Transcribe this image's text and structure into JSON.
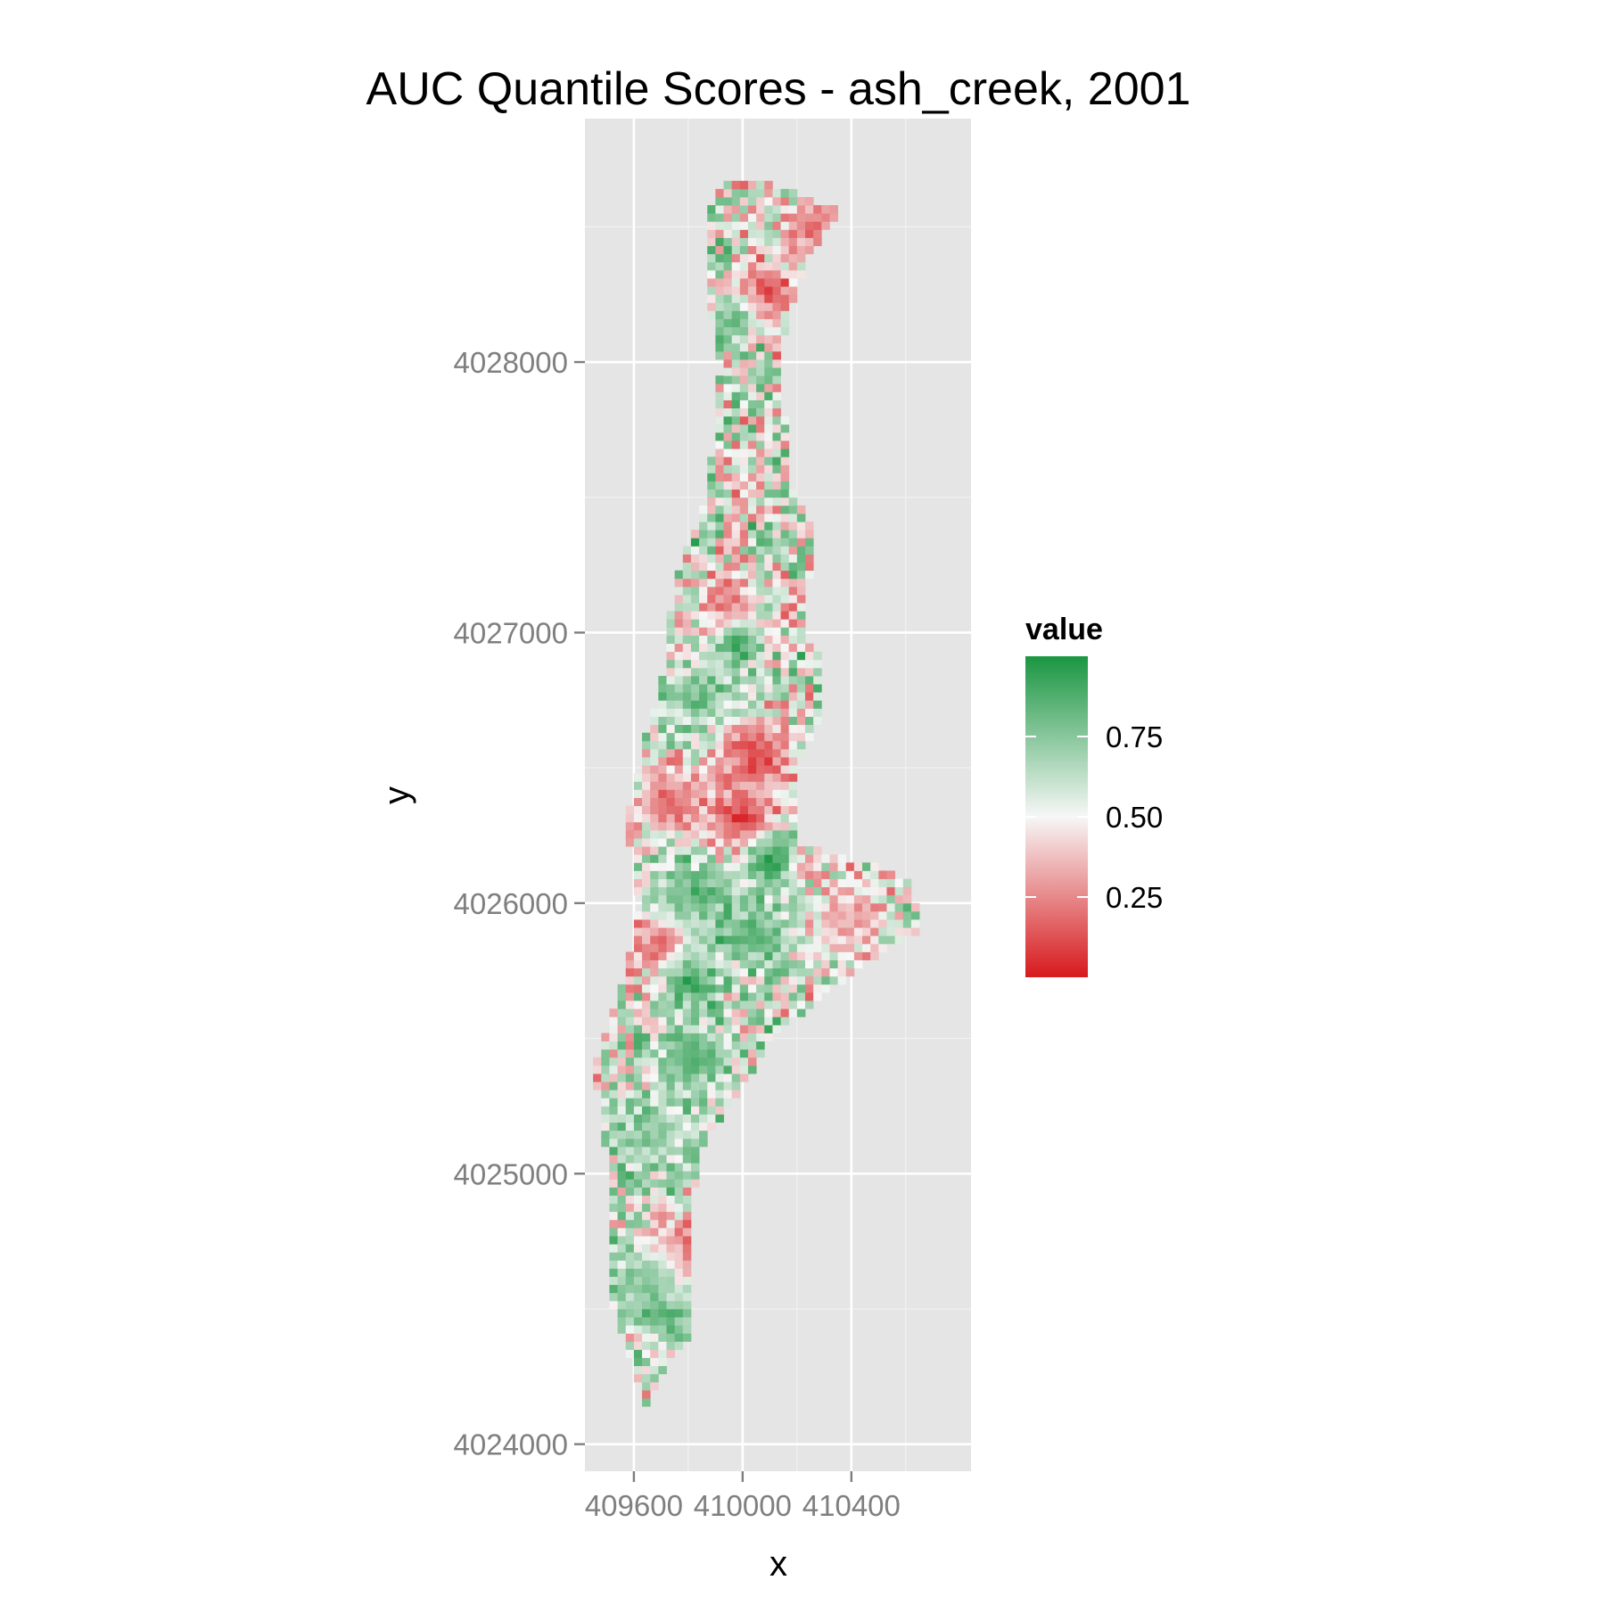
{
  "chart_data": {
    "type": "heatmap",
    "title": "AUC Quantile Scores - ash_creek, 2001",
    "xlabel": "x",
    "ylabel": "y",
    "xlim": [
      409420,
      410840
    ],
    "ylim": [
      4023900,
      4028900
    ],
    "x_ticks": [
      409600,
      410000,
      410400
    ],
    "x_tick_labels": [
      "409600",
      "410000",
      "410400"
    ],
    "y_ticks": [
      4024000,
      4025000,
      4026000,
      4027000,
      4028000
    ],
    "y_tick_labels": [
      "4024000",
      "4025000",
      "4026000",
      "4027000",
      "4028000"
    ],
    "grid": true,
    "cell_size": 30,
    "value_range": [
      0,
      1
    ],
    "legend": {
      "title": "value",
      "position": "right",
      "breaks": [
        0.75,
        0.5,
        0.25
      ],
      "labels": [
        "0.75",
        "0.50",
        "0.25"
      ],
      "colors": {
        "low": "#d7191c",
        "mid": "#f7f7f7",
        "high": "#1a9641"
      }
    },
    "region_outline": [
      [
        409950,
        4028680
      ],
      [
        410140,
        4028650
      ],
      [
        410360,
        4028560
      ],
      [
        410230,
        4028380
      ],
      [
        410130,
        4028000
      ],
      [
        410190,
        4027500
      ],
      [
        410260,
        4027380
      ],
      [
        410230,
        4027000
      ],
      [
        410300,
        4026870
      ],
      [
        410290,
        4026700
      ],
      [
        410210,
        4026520
      ],
      [
        410200,
        4026220
      ],
      [
        410480,
        4026140
      ],
      [
        410620,
        4026080
      ],
      [
        410660,
        4025900
      ],
      [
        410480,
        4025800
      ],
      [
        410100,
        4025500
      ],
      [
        409990,
        4025300
      ],
      [
        409850,
        4025100
      ],
      [
        409800,
        4024800
      ],
      [
        409800,
        4024400
      ],
      [
        409720,
        4024300
      ],
      [
        409650,
        4024130
      ],
      [
        409520,
        4024500
      ],
      [
        409510,
        4025000
      ],
      [
        409450,
        4025400
      ],
      [
        409560,
        4025700
      ],
      [
        409620,
        4026000
      ],
      [
        409570,
        4026300
      ],
      [
        409640,
        4026600
      ],
      [
        409710,
        4026850
      ],
      [
        409750,
        4027200
      ],
      [
        409870,
        4027500
      ],
      [
        409920,
        4028000
      ],
      [
        409860,
        4028300
      ],
      [
        409860,
        4028550
      ]
    ],
    "hotspots": [
      {
        "x": 410080,
        "y": 4028260,
        "value": 0.12,
        "radius": 110
      },
      {
        "x": 410250,
        "y": 4028500,
        "value": 0.18,
        "radius": 100
      },
      {
        "x": 409960,
        "y": 4028150,
        "value": 0.8,
        "radius": 90
      },
      {
        "x": 409950,
        "y": 4027100,
        "value": 0.2,
        "radius": 120
      },
      {
        "x": 409990,
        "y": 4026960,
        "value": 0.9,
        "radius": 90
      },
      {
        "x": 409840,
        "y": 4026750,
        "value": 0.8,
        "radius": 130
      },
      {
        "x": 410050,
        "y": 4026550,
        "value": 0.1,
        "radius": 140
      },
      {
        "x": 409990,
        "y": 4026320,
        "value": 0.08,
        "radius": 120
      },
      {
        "x": 410110,
        "y": 4026160,
        "value": 0.92,
        "radius": 90
      },
      {
        "x": 409750,
        "y": 4026380,
        "value": 0.2,
        "radius": 130
      },
      {
        "x": 409820,
        "y": 4026030,
        "value": 0.85,
        "radius": 140
      },
      {
        "x": 409690,
        "y": 4025840,
        "value": 0.15,
        "radius": 110
      },
      {
        "x": 410050,
        "y": 4025880,
        "value": 0.85,
        "radius": 130
      },
      {
        "x": 410400,
        "y": 4025950,
        "value": 0.3,
        "radius": 140
      },
      {
        "x": 409810,
        "y": 4025710,
        "value": 0.9,
        "radius": 110
      },
      {
        "x": 409820,
        "y": 4025420,
        "value": 0.82,
        "radius": 140
      },
      {
        "x": 409660,
        "y": 4025150,
        "value": 0.75,
        "radius": 140
      },
      {
        "x": 409770,
        "y": 4024700,
        "value": 0.15,
        "radius": 130
      },
      {
        "x": 409640,
        "y": 4024600,
        "value": 0.75,
        "radius": 150
      },
      {
        "x": 409730,
        "y": 4024460,
        "value": 0.85,
        "radius": 90
      }
    ],
    "noise_amplitude": 0.34
  }
}
